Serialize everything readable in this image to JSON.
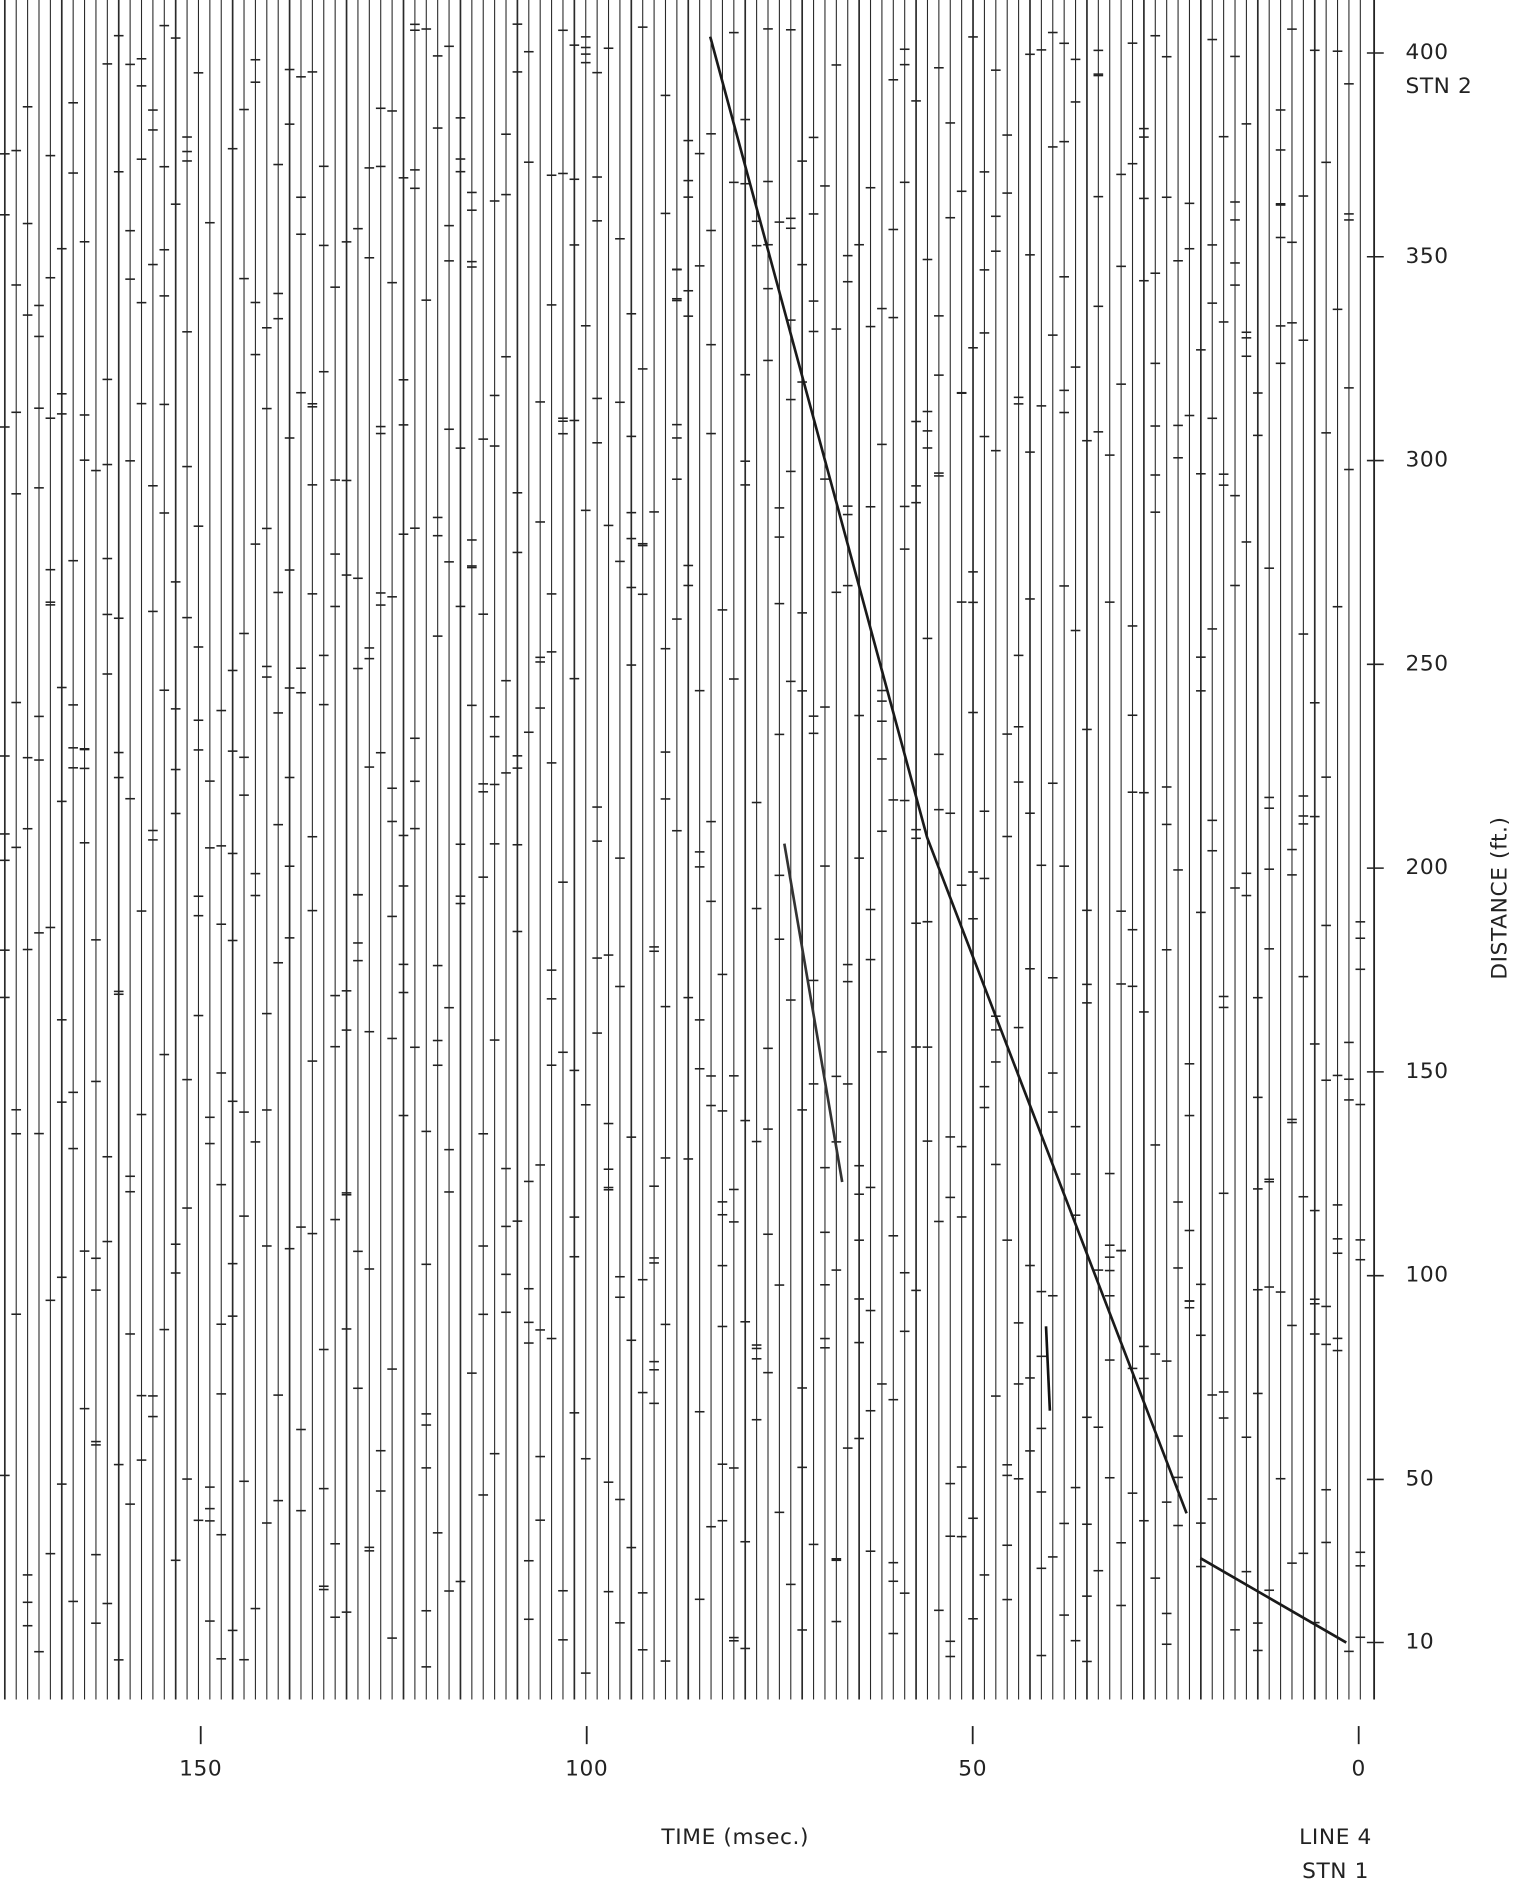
{
  "chart_data": {
    "type": "line",
    "x_label": "TIME (msec.)",
    "y_label": "DISTANCE (ft.)",
    "xlim": [
      176,
      -2
    ],
    "ylim": [
      -4,
      413
    ],
    "xticks": [
      150,
      100,
      50,
      0
    ],
    "yticks": [
      10,
      50,
      100,
      150,
      200,
      250,
      300,
      350,
      400
    ],
    "y_annotation": "STN 2",
    "footer": [
      "LINE 4",
      "STN 1"
    ],
    "series": [
      {
        "color": "#1a1a1a",
        "x": [
          1.6,
          20.5,
          null,
          22.3,
          55.9,
          84
        ],
        "values": [
          10,
          30.7,
          null,
          41.7,
          207.5,
          404
        ]
      },
      {
        "color": "#333333",
        "x": [
          74.4,
          66.9
        ],
        "values": [
          206,
          123
        ]
      },
      {
        "color": "#111111",
        "x": [
          40.5,
          40.0
        ],
        "values": [
          87.6,
          66.9
        ]
      }
    ]
  }
}
